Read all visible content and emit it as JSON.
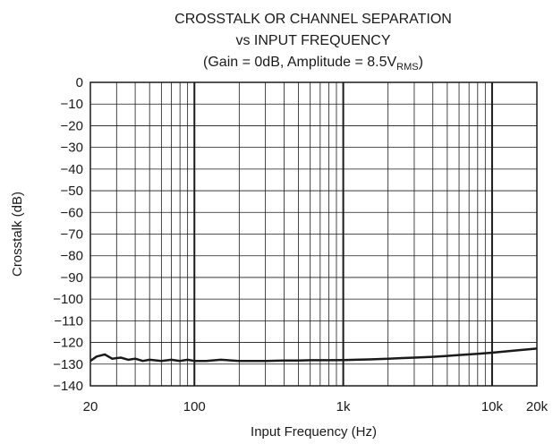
{
  "chart_data": {
    "type": "line",
    "title": "CROSSTALK OR CHANNEL SEPARATION",
    "subtitle": "vs INPUT FREQUENCY",
    "condition": {
      "prefix": "(Gain = 0dB, Amplitude = 8.5V",
      "subscript": "RMS",
      "suffix": ")"
    },
    "xlabel": "Input Frequency (Hz)",
    "ylabel": "Crosstalk (dB)",
    "xscale": "log",
    "xlim": [
      20,
      20000
    ],
    "ylim": [
      -140,
      0
    ],
    "xticks": [
      {
        "value": 20,
        "label": "20"
      },
      {
        "value": 100,
        "label": "100"
      },
      {
        "value": 1000,
        "label": "1k"
      },
      {
        "value": 10000,
        "label": "10k"
      },
      {
        "value": 20000,
        "label": "20k"
      }
    ],
    "yticks": [
      {
        "value": 0,
        "label": "0"
      },
      {
        "value": -10,
        "label": "−10"
      },
      {
        "value": -20,
        "label": "−20"
      },
      {
        "value": -30,
        "label": "−30"
      },
      {
        "value": -40,
        "label": "−40"
      },
      {
        "value": -50,
        "label": "−50"
      },
      {
        "value": -60,
        "label": "−60"
      },
      {
        "value": -70,
        "label": "−70"
      },
      {
        "value": -80,
        "label": "−80"
      },
      {
        "value": -90,
        "label": "−90"
      },
      {
        "value": -100,
        "label": "−100"
      },
      {
        "value": -110,
        "label": "−110"
      },
      {
        "value": -120,
        "label": "−120"
      },
      {
        "value": -130,
        "label": "−130"
      },
      {
        "value": -140,
        "label": "−140"
      }
    ],
    "grid": true,
    "series": [
      {
        "color": "#1a1a1a",
        "x": [
          20,
          22,
          25,
          28,
          32,
          36,
          40,
          45,
          50,
          60,
          70,
          80,
          90,
          100,
          120,
          150,
          200,
          250,
          300,
          400,
          500,
          600,
          700,
          800,
          1000,
          1200,
          1500,
          2000,
          2500,
          3000,
          4000,
          5000,
          6000,
          7000,
          8000,
          10000,
          12000,
          15000,
          20000
        ],
        "y": [
          -128.5,
          -126.5,
          -125.5,
          -127.5,
          -127,
          -128,
          -127.5,
          -128.5,
          -128,
          -128.5,
          -128,
          -128.5,
          -128,
          -128.5,
          -128.5,
          -128,
          -128.5,
          -128.5,
          -128.5,
          -128.3,
          -128.3,
          -128.2,
          -128.2,
          -128.2,
          -128.1,
          -128,
          -127.8,
          -127.5,
          -127.2,
          -127,
          -126.6,
          -126.2,
          -125.8,
          -125.5,
          -125.2,
          -124.7,
          -124.2,
          -123.6,
          -122.8
        ]
      }
    ]
  }
}
